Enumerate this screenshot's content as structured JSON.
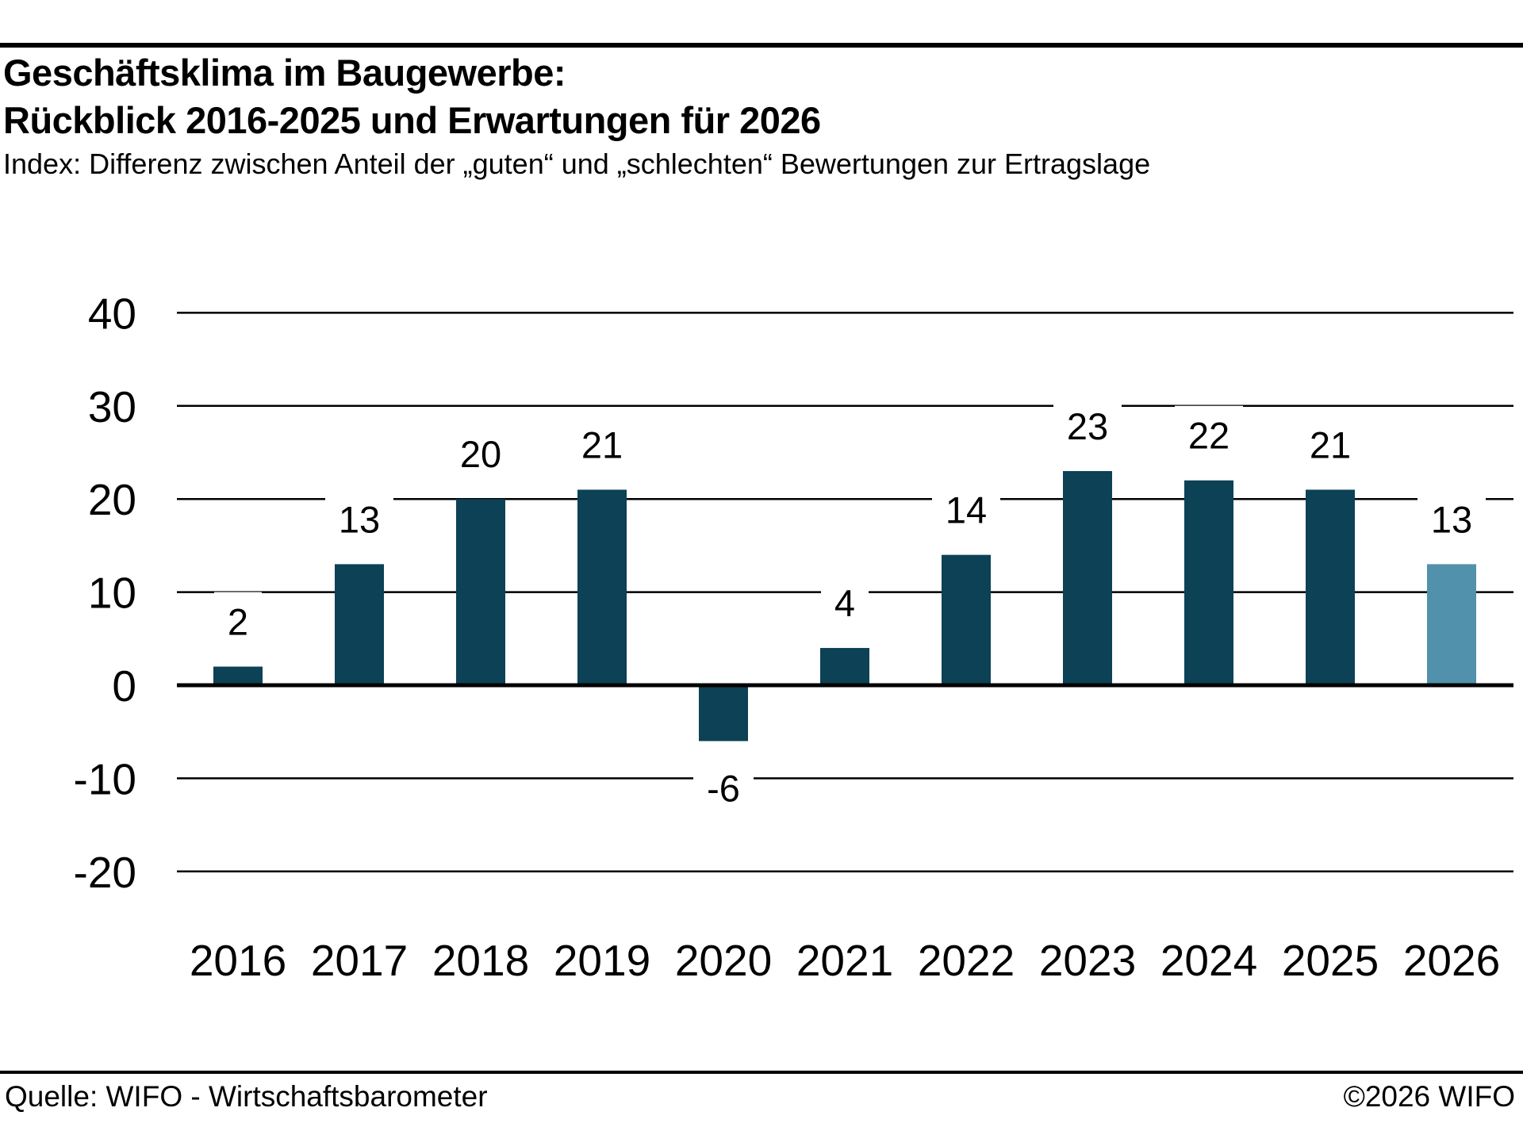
{
  "header": {
    "title_line1": "Geschäftsklima im Baugewerbe:",
    "title_line2": "Rückblick 2016-2025 und Erwartungen für 2026",
    "subtitle": "Index: Differenz zwischen Anteil der „guten“ und „schlechten“ Bewertungen zur Ertragslage"
  },
  "footer": {
    "source": "Quelle: WIFO - Wirtschaftsbarometer",
    "copyright": "©2026 WIFO"
  },
  "chart_data": {
    "type": "bar",
    "title": "Geschäftsklima im Baugewerbe: Rückblick 2016-2025 und Erwartungen für 2026",
    "subtitle": "Index: Differenz zwischen Anteil der „guten“ und „schlechten“ Bewertungen zur Ertragslage",
    "categories": [
      "2016",
      "2017",
      "2018",
      "2019",
      "2020",
      "2021",
      "2022",
      "2023",
      "2024",
      "2025",
      "2026"
    ],
    "values": [
      2,
      13,
      20,
      21,
      -6,
      4,
      14,
      23,
      22,
      21,
      13
    ],
    "xlabel": "",
    "ylabel": "",
    "ylim": [
      -20,
      40
    ],
    "yticks": [
      40,
      30,
      20,
      10,
      0,
      -10,
      -20
    ],
    "grid": true,
    "legend_position": "none",
    "value_labels": true,
    "bar_color": "#0c4156",
    "forecast_bar_color": "#5191ac",
    "forecast_category": "2026",
    "axis_color": "#000000"
  }
}
